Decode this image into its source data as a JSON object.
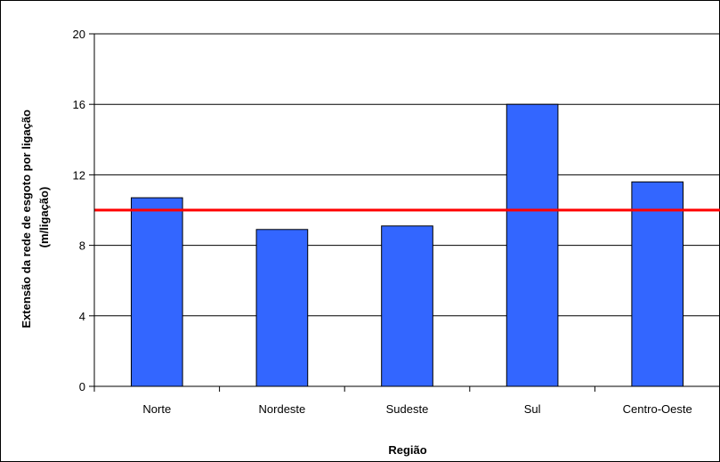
{
  "chart_data": {
    "type": "bar",
    "title": "",
    "xlabel": "Região",
    "ylabel_lines": [
      "Extensão da rede de esgoto por ligação",
      "(m/ligação)"
    ],
    "categories": [
      "Norte",
      "Nordeste",
      "Sudeste",
      "Sul",
      "Centro-Oeste"
    ],
    "values": [
      10.7,
      8.9,
      9.1,
      16.0,
      11.6
    ],
    "reference_line": 10,
    "ylim": [
      0,
      20
    ],
    "yticks": [
      0,
      4,
      8,
      12,
      16,
      20
    ],
    "grid": true,
    "legend": "none"
  },
  "colors": {
    "bar_fill": "#3366ff",
    "bar_stroke": "#000000",
    "reference_line": "#ff0000",
    "grid": "#000000",
    "frame": "#000000"
  }
}
